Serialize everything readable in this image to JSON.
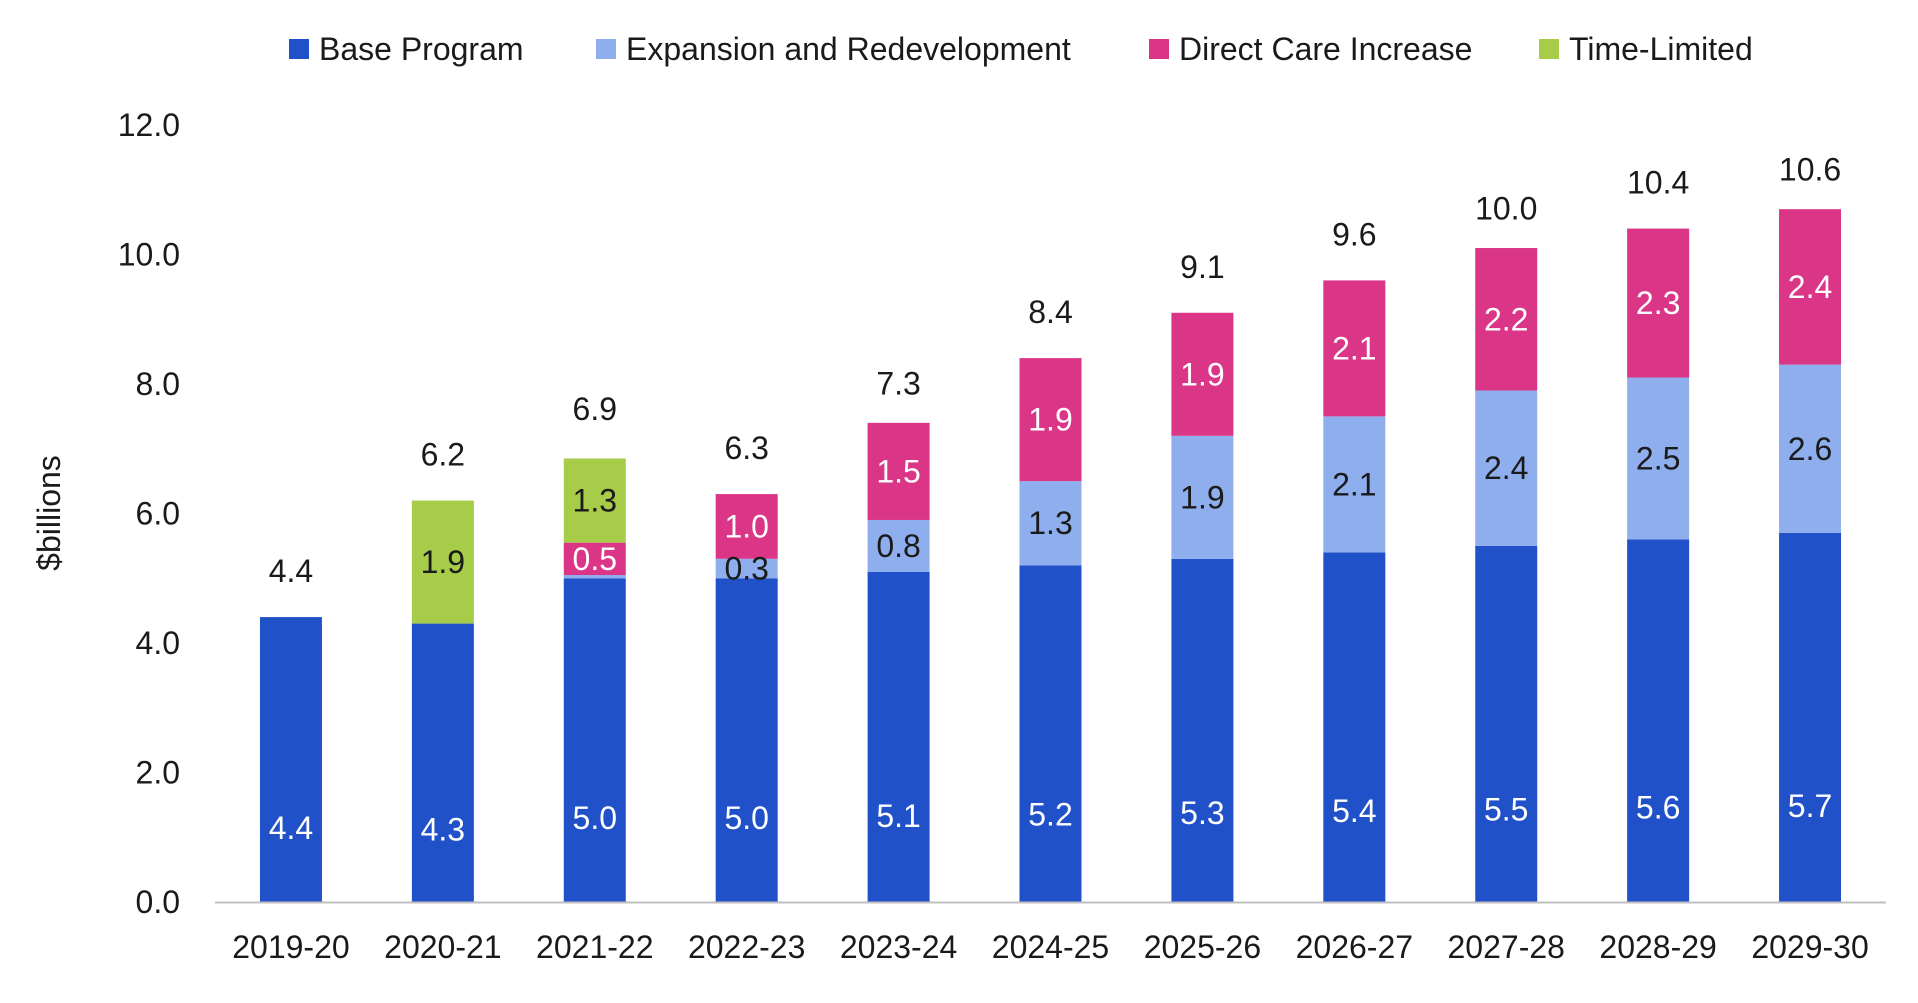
{
  "chart_data": {
    "type": "bar",
    "stacked": true,
    "title": "",
    "xlabel": "",
    "ylabel": "$billions",
    "ylim": [
      0,
      12
    ],
    "yticks": [
      "0.0",
      "2.0",
      "4.0",
      "6.0",
      "8.0",
      "10.0",
      "12.0"
    ],
    "grid": false,
    "legend_position": "top",
    "categories": [
      "2019-20",
      "2020-21",
      "2021-22",
      "2022-23",
      "2023-24",
      "2024-25",
      "2025-26",
      "2026-27",
      "2027-28",
      "2028-29",
      "2029-30"
    ],
    "series": [
      {
        "name": "Base Program",
        "color": "#2151c9",
        "values": [
          4.4,
          4.3,
          5.0,
          5.0,
          5.1,
          5.2,
          5.3,
          5.4,
          5.5,
          5.6,
          5.7
        ],
        "labels": [
          "4.4",
          "4.3",
          "5.0",
          "5.0",
          "5.1",
          "5.2",
          "5.3",
          "5.4",
          "5.5",
          "5.6",
          "5.7"
        ]
      },
      {
        "name": "Expansion and Redevelopment",
        "color": "#8eaeed",
        "values": [
          0,
          0,
          0.05,
          0.3,
          0.8,
          1.3,
          1.9,
          2.1,
          2.4,
          2.5,
          2.6
        ],
        "labels": [
          "",
          "",
          "",
          "0.3",
          "0.8",
          "1.3",
          "1.9",
          "2.1",
          "2.4",
          "2.5",
          "2.6"
        ]
      },
      {
        "name": "Direct Care Increase",
        "color": "#db3587",
        "values": [
          0,
          0,
          0.5,
          1.0,
          1.5,
          1.9,
          1.9,
          2.1,
          2.2,
          2.3,
          2.4
        ],
        "labels": [
          "",
          "",
          "0.5",
          "1.0",
          "1.5",
          "1.9",
          "1.9",
          "2.1",
          "2.2",
          "2.3",
          "2.4"
        ]
      },
      {
        "name": "Time-Limited",
        "color": "#a6cc4a",
        "values": [
          0,
          1.9,
          1.3,
          0,
          0,
          0,
          0,
          0,
          0,
          0,
          0
        ],
        "labels": [
          "",
          "1.9",
          "1.3",
          "",
          "",
          "",
          "",
          "",
          "",
          "",
          ""
        ]
      }
    ],
    "totals": [
      4.4,
      6.2,
      6.9,
      6.3,
      7.3,
      8.4,
      9.1,
      9.6,
      10.0,
      10.4,
      10.6
    ],
    "total_labels": [
      "4.4",
      "6.2",
      "6.9",
      "6.3",
      "7.3",
      "8.4",
      "9.1",
      "9.6",
      "10.0",
      "10.4",
      "10.6"
    ],
    "label_colors": {
      "Base Program": "#ffffff",
      "Expansion and Redevelopment": "#1a1a1a",
      "Direct Care Increase": "#ffffff",
      "Time-Limited": "#1a1a1a",
      "total": "#1a1a1a"
    }
  }
}
